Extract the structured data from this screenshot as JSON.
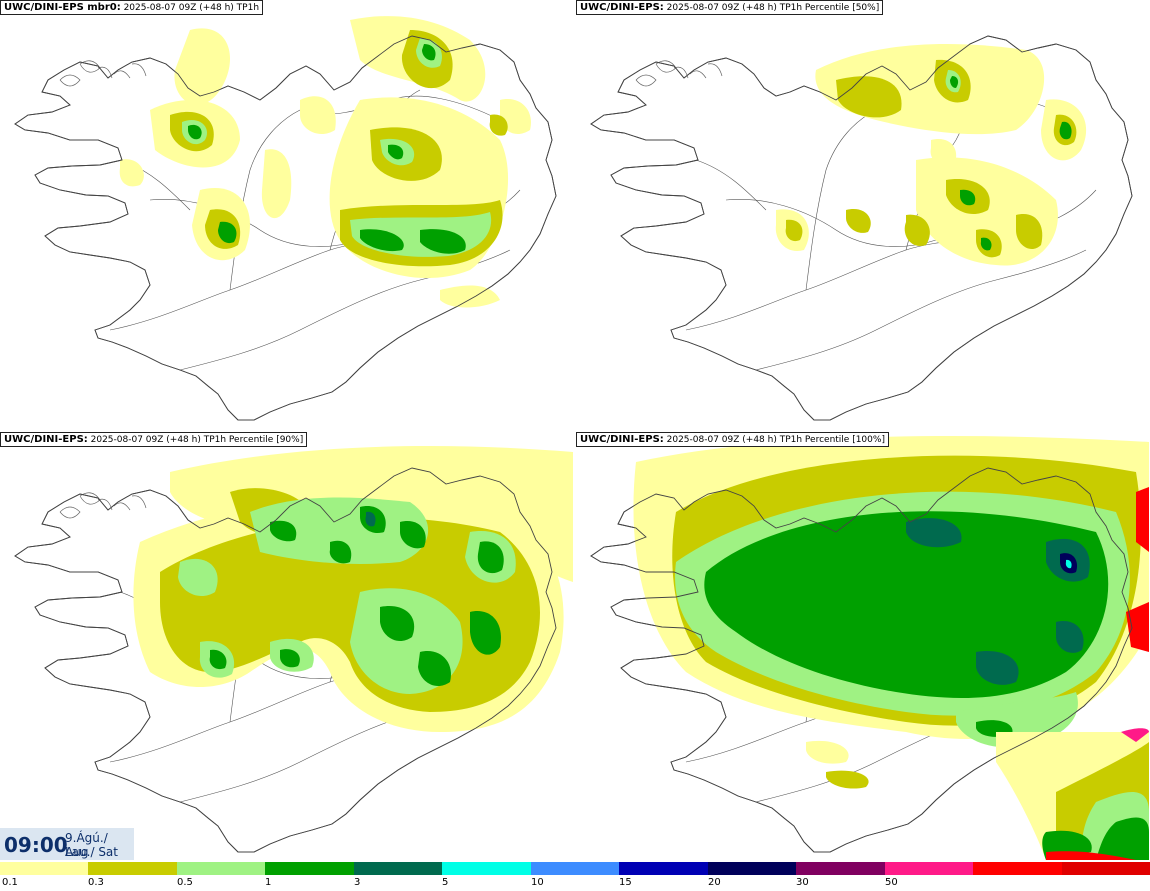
{
  "panels": [
    {
      "id": "p1",
      "title_model": "UWC/DINI-EPS mbr0",
      "title_sep": ":",
      "title_info": " 2025-08-07 09Z (+48 h) ",
      "title_field": "TP1h"
    },
    {
      "id": "p2",
      "title_model": "UWC/DINI-EPS",
      "title_sep": ":",
      "title_info": " 2025-08-07 09Z (+48 h) ",
      "title_field": "TP1h Percentile [50%]"
    },
    {
      "id": "p3",
      "title_model": "UWC/DINI-EPS",
      "title_sep": ":",
      "title_info": " 2025-08-07 09Z (+48 h) ",
      "title_field": "TP1h Percentile [90%]"
    },
    {
      "id": "p4",
      "title_model": "UWC/DINI-EPS",
      "title_sep": ":",
      "title_info": " 2025-08-07 09Z (+48 h) ",
      "title_field": "TP1h Percentile [100%]"
    }
  ],
  "valid_time": {
    "time": "09:00",
    "date_line1": "9.Ágú./ Aug",
    "date_line2": "Lau./ Sat"
  },
  "colorbar": {
    "colors": [
      "#ffff9e",
      "#c8cc00",
      "#9ff283",
      "#00a000",
      "#006a4e",
      "#00ffe6",
      "#3d8cff",
      "#0000b4",
      "#00005a",
      "#800060",
      "#ff1a88",
      "#ff0000",
      "#e00000"
    ],
    "ticks": [
      "0.1",
      "0.3",
      "0.5",
      "1",
      "3",
      "5",
      "10",
      "15",
      "20",
      "30",
      "50"
    ]
  },
  "colors": {
    "light_yellow": "#ffff9e",
    "olive": "#c8cc00",
    "light_green": "#9ff283",
    "green": "#00a000",
    "dark_green": "#006a4e",
    "red": "#ff0000"
  }
}
